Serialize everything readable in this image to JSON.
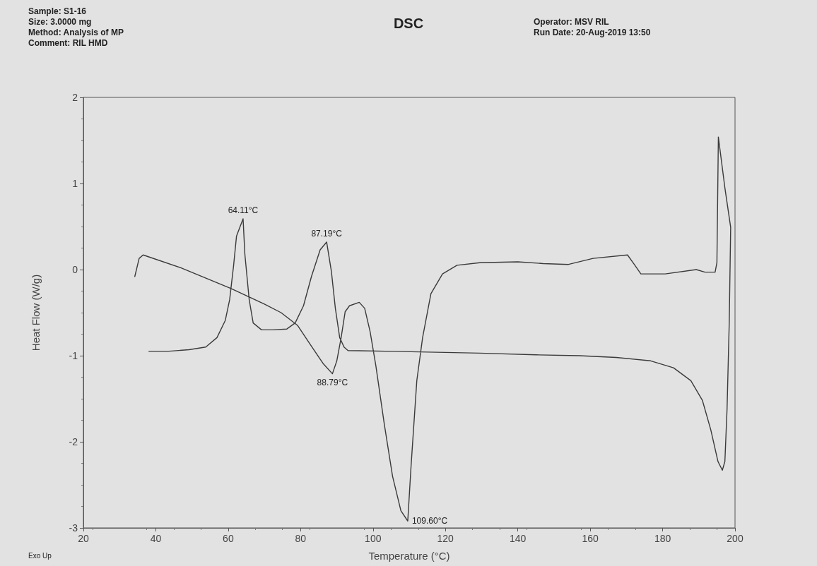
{
  "chart_data": {
    "type": "line",
    "title": "DSC",
    "xlabel": "Temperature (°C)",
    "ylabel": "Heat Flow (W/g)",
    "xlim": [
      20,
      200
    ],
    "xticks": [
      20,
      40,
      60,
      80,
      100,
      120,
      140,
      160,
      180,
      200
    ],
    "ylim": [
      -3,
      2
    ],
    "yticks": [
      -3,
      -2,
      -1,
      0,
      1,
      2
    ],
    "marker": "none",
    "line_style": "solid",
    "series": [
      {
        "color": "#3a3a3a",
        "x": [
          34.2,
          35.4,
          36.5,
          47,
          60.8,
          70,
          74.6,
          79.2,
          83,
          86.2,
          88.79,
          90,
          91.2,
          92.3,
          93.5,
          96.2,
          97.7,
          99.2,
          100.8,
          103.1,
          105.4,
          107.7,
          109.6,
          110.5,
          112.1,
          113.7,
          116,
          119.2,
          123.2,
          129.5,
          140,
          147,
          154,
          160.8,
          170.3,
          172,
          174,
          180.7,
          189.3,
          191.7,
          194.5,
          195,
          195.4,
          197.2,
          198.8,
          198.4,
          197.8,
          197.2,
          196.5,
          195.3,
          193.3,
          191,
          187.8,
          183,
          176.7,
          167.2,
          157,
          145,
          129.4,
          105.7,
          93.1,
          92,
          90.8,
          89.6,
          88.5,
          87.19,
          85.4,
          83,
          80.8,
          78.5,
          76.2,
          72.3,
          69.2,
          66.9,
          65.8,
          64.6,
          64.11,
          62.3,
          61.5,
          60.4,
          59.2,
          56.9,
          53.8,
          49.2,
          43.1,
          38.1
        ],
        "values": [
          -0.08,
          0.13,
          0.17,
          0.02,
          -0.22,
          -0.4,
          -0.5,
          -0.65,
          -0.89,
          -1.09,
          -1.21,
          -1.06,
          -0.79,
          -0.49,
          -0.42,
          -0.38,
          -0.45,
          -0.72,
          -1.12,
          -1.79,
          -2.4,
          -2.8,
          -2.92,
          -2.29,
          -1.29,
          -0.79,
          -0.28,
          -0.05,
          0.05,
          0.08,
          0.09,
          0.07,
          0.06,
          0.13,
          0.17,
          0.07,
          -0.05,
          -0.05,
          0,
          -0.03,
          -0.03,
          0.08,
          1.54,
          0.95,
          0.49,
          -0.62,
          -1.62,
          -2.23,
          -2.33,
          -2.23,
          -1.86,
          -1.52,
          -1.29,
          -1.14,
          -1.06,
          -1.02,
          -1,
          -0.99,
          -0.97,
          -0.95,
          -0.94,
          -0.9,
          -0.79,
          -0.45,
          -0.02,
          0.32,
          0.23,
          -0.08,
          -0.42,
          -0.62,
          -0.69,
          -0.7,
          -0.7,
          -0.62,
          -0.35,
          0.18,
          0.59,
          0.39,
          0.05,
          -0.35,
          -0.59,
          -0.79,
          -0.9,
          -0.93,
          -0.95,
          -0.95
        ]
      }
    ],
    "annotations": [
      "Sample: S1-16",
      "Size: 3.0000 mg",
      "Method: Analysis of MP",
      "Comment: RIL HMD",
      "Operator: MSV RIL",
      "Run Date: 20-Aug-2019 13:50",
      "Exo Up",
      {
        "text": "64.11°C",
        "x": 64.11,
        "y": 0.59
      },
      {
        "text": "87.19°C",
        "x": 87.19,
        "y": 0.32
      },
      {
        "text": "88.79°C",
        "x": 88.79,
        "y": -1.21
      },
      {
        "text": "109.60°C",
        "x": 109.6,
        "y": -2.92
      }
    ]
  }
}
